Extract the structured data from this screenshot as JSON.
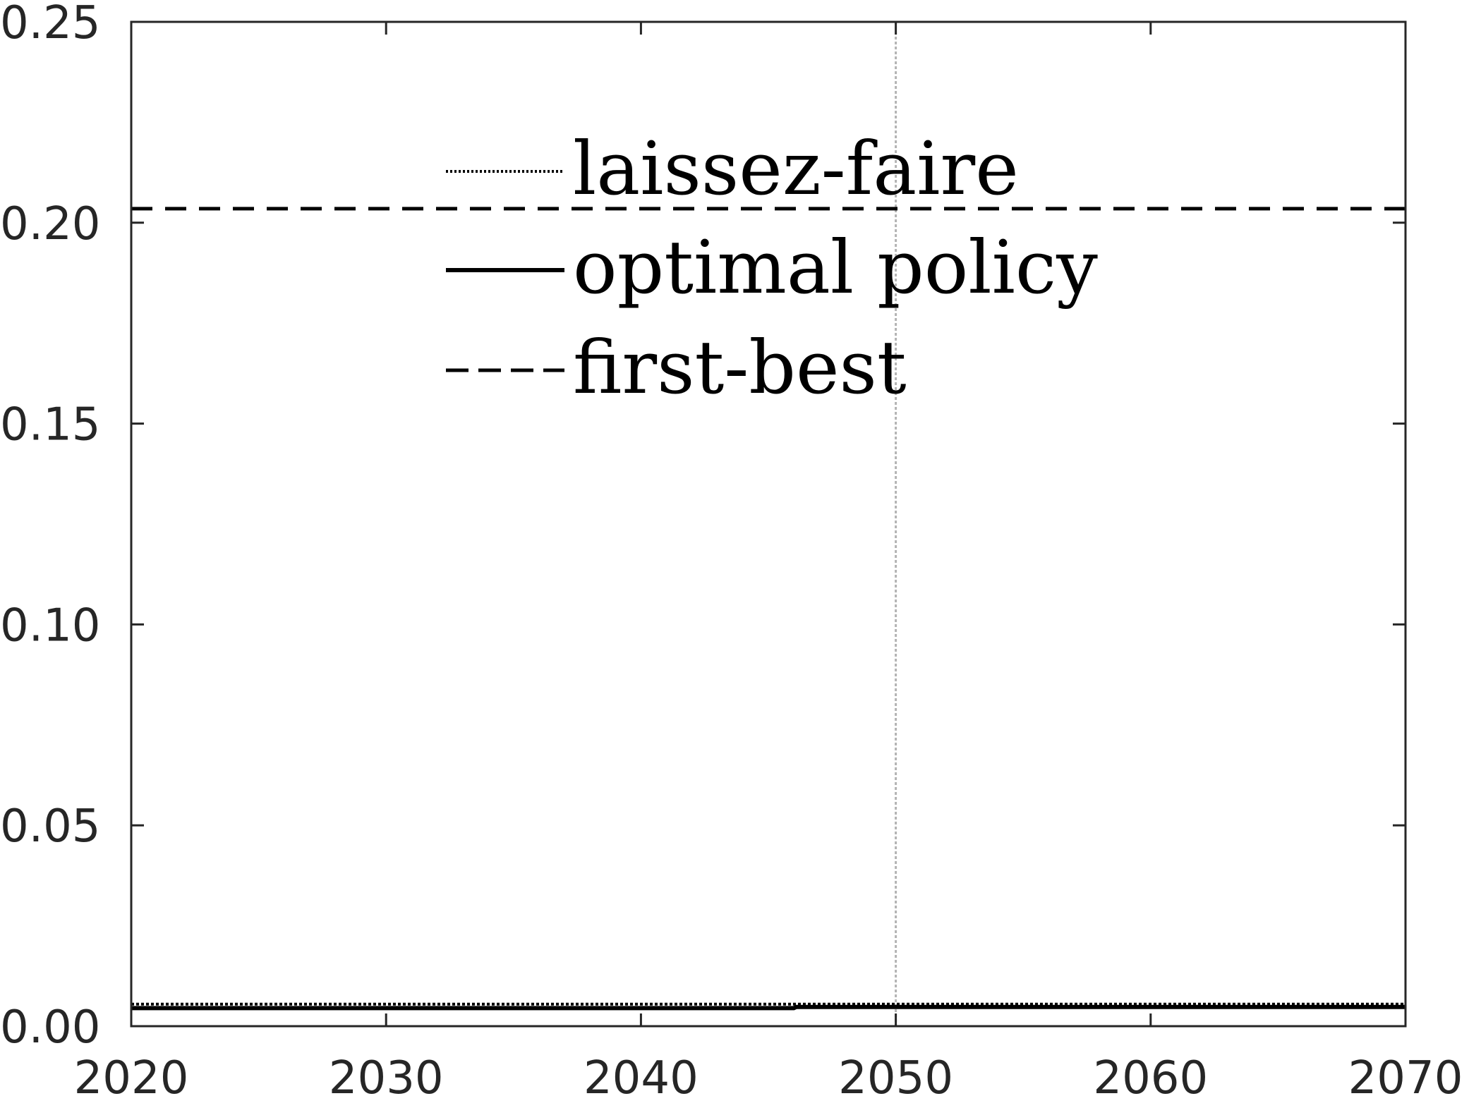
{
  "chart_data": {
    "type": "line",
    "title": "",
    "xlabel": "",
    "ylabel": "",
    "xlim": [
      2020,
      2070
    ],
    "ylim": [
      0,
      0.25
    ],
    "xticks": [
      2020,
      2030,
      2040,
      2050,
      2060,
      2070
    ],
    "xtick_labels": [
      "2020",
      "2030",
      "2040",
      "2050",
      "2060",
      "2070"
    ],
    "yticks": [
      0,
      0.05,
      0.1,
      0.15,
      0.2,
      0.25
    ],
    "ytick_labels": [
      "0.00",
      "0.05",
      "0.10",
      "0.15",
      "0.20",
      "0.25"
    ],
    "grid": false,
    "reference_line": {
      "x": 2050,
      "style": "dotted",
      "color": "#b3b3b3"
    },
    "legend_position": "top-center",
    "series": [
      {
        "name": "laissez-faire",
        "style": "dotted",
        "color": "#000000",
        "x": [
          2020,
          2030,
          2040,
          2050,
          2060,
          2070
        ],
        "y": [
          0.0055,
          0.0055,
          0.0055,
          0.0055,
          0.0055,
          0.0055
        ]
      },
      {
        "name": "optimal policy",
        "style": "solid",
        "color": "#000000",
        "x": [
          2020,
          2030,
          2040,
          2046,
          2046.1,
          2050,
          2060,
          2070
        ],
        "y": [
          0.0045,
          0.0045,
          0.0045,
          0.0045,
          0.0048,
          0.0048,
          0.0048,
          0.0048
        ]
      },
      {
        "name": "first-best",
        "style": "dashed",
        "color": "#000000",
        "x": [
          2020,
          2030,
          2040,
          2050,
          2060,
          2070
        ],
        "y": [
          0.2035,
          0.2035,
          0.2035,
          0.2035,
          0.2035,
          0.2035
        ]
      }
    ]
  }
}
